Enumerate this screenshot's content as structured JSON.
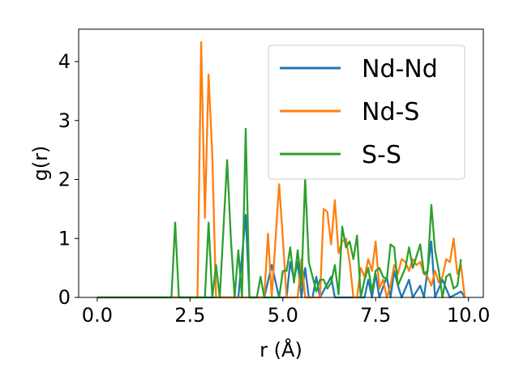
{
  "chart_data": {
    "type": "line",
    "xlabel": "r (Å)",
    "ylabel": "g(r)",
    "xlim": [
      -0.5,
      10.4
    ],
    "ylim": [
      0,
      4.55
    ],
    "xticks": [
      "0.0",
      "2.5",
      "5.0",
      "7.5",
      "10.0"
    ],
    "yticks": [
      "0",
      "1",
      "2",
      "3",
      "4"
    ],
    "grid": false,
    "legend_position": "top-right",
    "series": [
      {
        "name": "Nd-Nd",
        "color": "#1f77b4",
        "points": [
          [
            0,
            0
          ],
          [
            3.8,
            0
          ],
          [
            4.0,
            1.4
          ],
          [
            4.1,
            0
          ],
          [
            4.5,
            0
          ],
          [
            4.7,
            0.55
          ],
          [
            4.9,
            0
          ],
          [
            5.1,
            0
          ],
          [
            5.2,
            0.6
          ],
          [
            5.3,
            0.3
          ],
          [
            5.4,
            0.6
          ],
          [
            5.5,
            0
          ],
          [
            5.6,
            0.5
          ],
          [
            5.7,
            0
          ],
          [
            5.8,
            0
          ],
          [
            5.9,
            0.35
          ],
          [
            6.0,
            0
          ],
          [
            6.3,
            0.35
          ],
          [
            6.4,
            0
          ],
          [
            7.2,
            0
          ],
          [
            7.3,
            0.3
          ],
          [
            7.4,
            0
          ],
          [
            7.5,
            0.4
          ],
          [
            7.6,
            0
          ],
          [
            7.8,
            0.35
          ],
          [
            7.9,
            0
          ],
          [
            8.0,
            0.45
          ],
          [
            8.1,
            0.2
          ],
          [
            8.2,
            0
          ],
          [
            8.4,
            0.3
          ],
          [
            8.5,
            0
          ],
          [
            8.7,
            0.2
          ],
          [
            8.8,
            0
          ],
          [
            9.0,
            0.95
          ],
          [
            9.1,
            0
          ],
          [
            9.3,
            0.3
          ],
          [
            9.4,
            0.15
          ],
          [
            9.5,
            0
          ],
          [
            9.8,
            0.1
          ],
          [
            9.9,
            0
          ]
        ]
      },
      {
        "name": "Nd-S",
        "color": "#ff7f0e",
        "points": [
          [
            0,
            0
          ],
          [
            2.7,
            0
          ],
          [
            2.8,
            4.33
          ],
          [
            2.9,
            1.35
          ],
          [
            3.0,
            3.78
          ],
          [
            3.1,
            2.4
          ],
          [
            3.2,
            0
          ],
          [
            4.5,
            0
          ],
          [
            4.6,
            1.08
          ],
          [
            4.7,
            0
          ],
          [
            4.9,
            1.92
          ],
          [
            5.0,
            1.0
          ],
          [
            5.1,
            0
          ],
          [
            5.4,
            0
          ],
          [
            5.5,
            0.65
          ],
          [
            5.6,
            0
          ],
          [
            6.0,
            0
          ],
          [
            6.1,
            1.5
          ],
          [
            6.2,
            1.45
          ],
          [
            6.3,
            0.9
          ],
          [
            6.4,
            1.65
          ],
          [
            6.5,
            0.75
          ],
          [
            6.6,
            0.95
          ],
          [
            6.7,
            1.0
          ],
          [
            6.8,
            0.6
          ],
          [
            6.9,
            0
          ],
          [
            7.0,
            0
          ],
          [
            7.1,
            0.5
          ],
          [
            7.2,
            0.35
          ],
          [
            7.3,
            0.65
          ],
          [
            7.4,
            0.45
          ],
          [
            7.5,
            0.95
          ],
          [
            7.6,
            0.15
          ],
          [
            7.7,
            0.3
          ],
          [
            7.8,
            0
          ],
          [
            7.9,
            0.2
          ],
          [
            8.0,
            0.55
          ],
          [
            8.1,
            0.4
          ],
          [
            8.2,
            0.65
          ],
          [
            8.3,
            0.6
          ],
          [
            8.4,
            0.45
          ],
          [
            8.5,
            0.65
          ],
          [
            8.6,
            0.55
          ],
          [
            8.7,
            0.6
          ],
          [
            8.8,
            0.4
          ],
          [
            8.9,
            0.35
          ],
          [
            9.0,
            0.2
          ],
          [
            9.1,
            0.45
          ],
          [
            9.2,
            0.25
          ],
          [
            9.3,
            0.35
          ],
          [
            9.4,
            0.65
          ],
          [
            9.5,
            0.6
          ],
          [
            9.6,
            1.0
          ],
          [
            9.7,
            0.4
          ],
          [
            9.8,
            0.55
          ],
          [
            9.9,
            0
          ]
        ]
      },
      {
        "name": "S-S",
        "color": "#2ca02c",
        "points": [
          [
            0,
            0
          ],
          [
            2.0,
            0
          ],
          [
            2.1,
            1.27
          ],
          [
            2.2,
            0
          ],
          [
            2.9,
            0
          ],
          [
            3.0,
            1.27
          ],
          [
            3.1,
            0
          ],
          [
            3.2,
            0.55
          ],
          [
            3.3,
            0
          ],
          [
            3.5,
            2.33
          ],
          [
            3.6,
            1.0
          ],
          [
            3.7,
            0
          ],
          [
            3.8,
            0.8
          ],
          [
            3.9,
            0
          ],
          [
            4.0,
            2.86
          ],
          [
            4.1,
            0
          ],
          [
            4.3,
            0
          ],
          [
            4.4,
            0.35
          ],
          [
            4.5,
            0
          ],
          [
            4.9,
            0
          ],
          [
            5.0,
            0.45
          ],
          [
            5.1,
            0.45
          ],
          [
            5.2,
            0.85
          ],
          [
            5.3,
            0.25
          ],
          [
            5.4,
            0.8
          ],
          [
            5.5,
            0.2
          ],
          [
            5.6,
            2.02
          ],
          [
            5.7,
            0.6
          ],
          [
            5.8,
            0.35
          ],
          [
            5.9,
            0.1
          ],
          [
            6.0,
            0.3
          ],
          [
            6.1,
            0.3
          ],
          [
            6.2,
            0.15
          ],
          [
            6.3,
            0.25
          ],
          [
            6.4,
            0.55
          ],
          [
            6.5,
            0.05
          ],
          [
            6.6,
            1.2
          ],
          [
            6.7,
            0.85
          ],
          [
            6.8,
            0.95
          ],
          [
            6.9,
            0.65
          ],
          [
            7.0,
            1.05
          ],
          [
            7.1,
            0
          ],
          [
            7.2,
            0.3
          ],
          [
            7.3,
            0.5
          ],
          [
            7.4,
            0.1
          ],
          [
            7.5,
            0.45
          ],
          [
            7.6,
            0.5
          ],
          [
            7.7,
            0.35
          ],
          [
            7.8,
            0.3
          ],
          [
            7.9,
            0.9
          ],
          [
            8.0,
            0.85
          ],
          [
            8.1,
            0.2
          ],
          [
            8.2,
            0.35
          ],
          [
            8.3,
            0.5
          ],
          [
            8.4,
            0.85
          ],
          [
            8.5,
            0.5
          ],
          [
            8.6,
            0.7
          ],
          [
            8.7,
            0.9
          ],
          [
            8.8,
            0.4
          ],
          [
            8.9,
            0.45
          ],
          [
            9.0,
            1.57
          ],
          [
            9.1,
            0.8
          ],
          [
            9.2,
            0.45
          ],
          [
            9.3,
            0
          ],
          [
            9.4,
            0.35
          ],
          [
            9.5,
            0.4
          ],
          [
            9.6,
            0.15
          ],
          [
            9.7,
            0.2
          ],
          [
            9.8,
            0.65
          ]
        ]
      }
    ]
  }
}
